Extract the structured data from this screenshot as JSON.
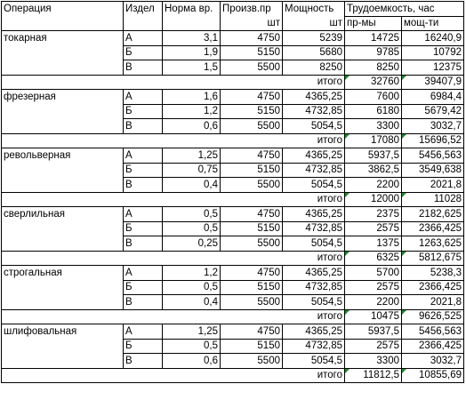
{
  "header": {
    "op": "Операция",
    "prod": "Издел",
    "norm": "Норма вр.",
    "output": "Произв.пр",
    "output_unit": "шт",
    "capacity": "Мощность",
    "capacity_unit": "шт",
    "labor": "Трудоемкость, час",
    "labor_a": "пр-мы",
    "labor_b": "мощ-ти"
  },
  "total_label": "итого",
  "groups": [
    {
      "name": "токарная",
      "rows": [
        {
          "prod": "А",
          "norm": "3,1",
          "output": "4750",
          "capacity": "5239",
          "la": "14725",
          "lb": "16240,9"
        },
        {
          "prod": "Б",
          "norm": "1,9",
          "output": "5150",
          "capacity": "5680",
          "la": "9785",
          "lb": "10792"
        },
        {
          "prod": "В",
          "norm": "1,5",
          "output": "5500",
          "capacity": "8250",
          "la": "8250",
          "lb": "12375"
        }
      ],
      "total_a": "32760",
      "total_b": "39407,9"
    },
    {
      "name": "фрезерная",
      "rows": [
        {
          "prod": "А",
          "norm": "1,6",
          "output": "4750",
          "capacity": "4365,25",
          "la": "7600",
          "lb": "6984,4"
        },
        {
          "prod": "Б",
          "norm": "1,2",
          "output": "5150",
          "capacity": "4732,85",
          "la": "6180",
          "lb": "5679,42"
        },
        {
          "prod": "В",
          "norm": "0,6",
          "output": "5500",
          "capacity": "5054,5",
          "la": "3300",
          "lb": "3032,7"
        }
      ],
      "total_a": "17080",
      "total_b": "15696,52"
    },
    {
      "name": "револьверная",
      "rows": [
        {
          "prod": "А",
          "norm": "1,25",
          "output": "4750",
          "capacity": "4365,25",
          "la": "5937,5",
          "lb": "5456,563"
        },
        {
          "prod": "Б",
          "norm": "0,75",
          "output": "5150",
          "capacity": "4732,85",
          "la": "3862,5",
          "lb": "3549,638"
        },
        {
          "prod": "В",
          "norm": "0,4",
          "output": "5500",
          "capacity": "5054,5",
          "la": "2200",
          "lb": "2021,8"
        }
      ],
      "total_a": "12000",
      "total_b": "11028"
    },
    {
      "name": "сверлильная",
      "rows": [
        {
          "prod": "А",
          "norm": "0,5",
          "output": "4750",
          "capacity": "4365,25",
          "la": "2375",
          "lb": "2182,625"
        },
        {
          "prod": "Б",
          "norm": "0,5",
          "output": "5150",
          "capacity": "4732,85",
          "la": "2575",
          "lb": "2366,425"
        },
        {
          "prod": "В",
          "norm": "0,25",
          "output": "5500",
          "capacity": "5054,5",
          "la": "1375",
          "lb": "1263,625"
        }
      ],
      "total_a": "6325",
      "total_b": "5812,675"
    },
    {
      "name": "строгальная",
      "rows": [
        {
          "prod": "А",
          "norm": "1,2",
          "output": "4750",
          "capacity": "4365,25",
          "la": "5700",
          "lb": "5238,3"
        },
        {
          "prod": "Б",
          "norm": "0,5",
          "output": "5150",
          "capacity": "4732,85",
          "la": "2575",
          "lb": "2366,425"
        },
        {
          "prod": "В",
          "norm": "0,4",
          "output": "5500",
          "capacity": "5054,5",
          "la": "2200",
          "lb": "2021,8"
        }
      ],
      "total_a": "10475",
      "total_b": "9626,525"
    },
    {
      "name": "шлифовальная",
      "rows": [
        {
          "prod": "А",
          "norm": "1,25",
          "output": "4750",
          "capacity": "4365,25",
          "la": "5937,5",
          "lb": "5456,563"
        },
        {
          "prod": "Б",
          "norm": "0,5",
          "output": "5150",
          "capacity": "4732,85",
          "la": "2575",
          "lb": "2366,425"
        },
        {
          "prod": "В",
          "norm": "0,6",
          "output": "5500",
          "capacity": "5054,5",
          "la": "3300",
          "lb": "3032,7"
        }
      ],
      "total_a": "11812,5",
      "total_b": "10855,69"
    }
  ]
}
